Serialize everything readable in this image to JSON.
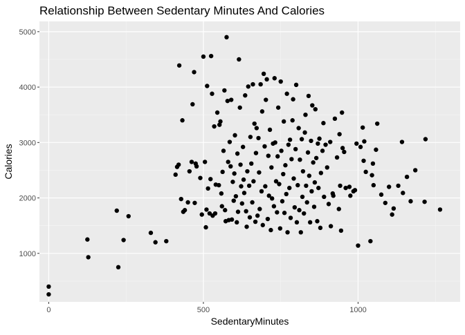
{
  "chart_data": {
    "type": "scatter",
    "title": "Relationship Between Sedentary Minutes And Calories",
    "xlabel": "SedentaryMinutes",
    "ylabel": "Calories",
    "xlim": [
      -30,
      1330
    ],
    "ylim": [
      125,
      5185
    ],
    "x_ticks": [
      0,
      500,
      1000
    ],
    "y_ticks": [
      1000,
      2000,
      3000,
      4000,
      5000
    ],
    "x_tick_labels": [
      "0",
      "500",
      "1000"
    ],
    "y_tick_labels": [
      "1000",
      "2000",
      "3000",
      "4000",
      "5000"
    ],
    "grid": true,
    "colors": {
      "panel": "#ebebeb",
      "grid_major": "#ffffff",
      "point": "#000000",
      "text": "#4d4d4d",
      "title": "#000000"
    },
    "points": [
      [
        0,
        400
      ],
      [
        0,
        260
      ],
      [
        125,
        1250
      ],
      [
        128,
        930
      ],
      [
        220,
        1770
      ],
      [
        225,
        750
      ],
      [
        242,
        1240
      ],
      [
        258,
        1670
      ],
      [
        330,
        1370
      ],
      [
        345,
        1200
      ],
      [
        380,
        1220
      ],
      [
        410,
        2420
      ],
      [
        415,
        2560
      ],
      [
        420,
        2600
      ],
      [
        422,
        4390
      ],
      [
        428,
        1980
      ],
      [
        432,
        3400
      ],
      [
        435,
        1750
      ],
      [
        440,
        1780
      ],
      [
        450,
        1920
      ],
      [
        455,
        2480
      ],
      [
        462,
        2650
      ],
      [
        465,
        3690
      ],
      [
        470,
        4270
      ],
      [
        472,
        1910
      ],
      [
        475,
        2620
      ],
      [
        478,
        2570
      ],
      [
        490,
        2360
      ],
      [
        495,
        1700
      ],
      [
        500,
        4550
      ],
      [
        505,
        2650
      ],
      [
        508,
        1470
      ],
      [
        510,
        1790
      ],
      [
        512,
        4020
      ],
      [
        515,
        2170
      ],
      [
        520,
        1720
      ],
      [
        523,
        2340
      ],
      [
        525,
        4560
      ],
      [
        528,
        3880
      ],
      [
        530,
        1680
      ],
      [
        535,
        3290
      ],
      [
        538,
        1720
      ],
      [
        540,
        2240
      ],
      [
        545,
        3540
      ],
      [
        550,
        2230
      ],
      [
        552,
        3320
      ],
      [
        555,
        3380
      ],
      [
        558,
        2080
      ],
      [
        560,
        1850
      ],
      [
        562,
        2470
      ],
      [
        565,
        2850
      ],
      [
        568,
        3940
      ],
      [
        570,
        1780
      ],
      [
        572,
        1580
      ],
      [
        575,
        4900
      ],
      [
        578,
        3750
      ],
      [
        580,
        2650
      ],
      [
        582,
        1600
      ],
      [
        585,
        3010
      ],
      [
        588,
        2570
      ],
      [
        590,
        3770
      ],
      [
        592,
        1610
      ],
      [
        595,
        2290
      ],
      [
        598,
        1950
      ],
      [
        600,
        2440
      ],
      [
        602,
        3130
      ],
      [
        605,
        2030
      ],
      [
        608,
        1560
      ],
      [
        610,
        2800
      ],
      [
        612,
        1750
      ],
      [
        615,
        4500
      ],
      [
        618,
        3630
      ],
      [
        620,
        2600
      ],
      [
        622,
        2210
      ],
      [
        625,
        1900
      ],
      [
        628,
        2920
      ],
      [
        630,
        2330
      ],
      [
        632,
        2090
      ],
      [
        635,
        3850
      ],
      [
        638,
        1760
      ],
      [
        640,
        1480
      ],
      [
        642,
        2480
      ],
      [
        645,
        4010
      ],
      [
        648,
        2220
      ],
      [
        650,
        1650
      ],
      [
        652,
        3100
      ],
      [
        655,
        2620
      ],
      [
        658,
        1920
      ],
      [
        660,
        4050
      ],
      [
        662,
        2300
      ],
      [
        665,
        3340
      ],
      [
        668,
        1570
      ],
      [
        670,
        2810
      ],
      [
        672,
        3260
      ],
      [
        675,
        1680
      ],
      [
        678,
        3080
      ],
      [
        680,
        2460
      ],
      [
        682,
        1800
      ],
      [
        685,
        4050
      ],
      [
        688,
        2120
      ],
      [
        690,
        3560
      ],
      [
        692,
        1510
      ],
      [
        695,
        4240
      ],
      [
        698,
        2930
      ],
      [
        700,
        2210
      ],
      [
        702,
        3770
      ],
      [
        705,
        4140
      ],
      [
        708,
        1620
      ],
      [
        710,
        2760
      ],
      [
        712,
        2040
      ],
      [
        715,
        3230
      ],
      [
        718,
        1420
      ],
      [
        720,
        2550
      ],
      [
        722,
        1990
      ],
      [
        725,
        2980
      ],
      [
        728,
        1850
      ],
      [
        730,
        4160
      ],
      [
        732,
        3000
      ],
      [
        735,
        2300
      ],
      [
        738,
        1740
      ],
      [
        740,
        2750
      ],
      [
        742,
        3630
      ],
      [
        745,
        2250
      ],
      [
        748,
        1450
      ],
      [
        750,
        4100
      ],
      [
        752,
        2850
      ],
      [
        755,
        1940
      ],
      [
        758,
        2430
      ],
      [
        760,
        3380
      ],
      [
        762,
        1730
      ],
      [
        765,
        2590
      ],
      [
        768,
        2070
      ],
      [
        770,
        3880
      ],
      [
        772,
        1380
      ],
      [
        775,
        2960
      ],
      [
        778,
        2180
      ],
      [
        780,
        3050
      ],
      [
        782,
        1640
      ],
      [
        785,
        2700
      ],
      [
        788,
        3400
      ],
      [
        790,
        3780
      ],
      [
        792,
        2350
      ],
      [
        795,
        1830
      ],
      [
        798,
        2880
      ],
      [
        800,
        4040
      ],
      [
        802,
        1560
      ],
      [
        805,
        2230
      ],
      [
        808,
        3260
      ],
      [
        810,
        1780
      ],
      [
        812,
        2690
      ],
      [
        815,
        1380
      ],
      [
        818,
        3060
      ],
      [
        820,
        2020
      ],
      [
        822,
        2480
      ],
      [
        825,
        1720
      ],
      [
        828,
        3180
      ],
      [
        830,
        3500
      ],
      [
        832,
        2220
      ],
      [
        835,
        1920
      ],
      [
        838,
        2820
      ],
      [
        840,
        3840
      ],
      [
        842,
        2400
      ],
      [
        845,
        1560
      ],
      [
        848,
        3030
      ],
      [
        850,
        2120
      ],
      [
        852,
        3670
      ],
      [
        855,
        2640
      ],
      [
        858,
        1840
      ],
      [
        860,
        2280
      ],
      [
        862,
        3600
      ],
      [
        865,
        2720
      ],
      [
        868,
        1580
      ],
      [
        870,
        2980
      ],
      [
        872,
        2180
      ],
      [
        875,
        3070
      ],
      [
        878,
        1460
      ],
      [
        880,
        2450
      ],
      [
        885,
        2850
      ],
      [
        888,
        3350
      ],
      [
        890,
        2020
      ],
      [
        895,
        2960
      ],
      [
        900,
        2550
      ],
      [
        905,
        1890
      ],
      [
        910,
        3010
      ],
      [
        912,
        1490
      ],
      [
        918,
        2080
      ],
      [
        920,
        2040
      ],
      [
        925,
        3430
      ],
      [
        932,
        2730
      ],
      [
        938,
        1800
      ],
      [
        940,
        3150
      ],
      [
        942,
        2220
      ],
      [
        945,
        1410
      ],
      [
        948,
        3540
      ],
      [
        950,
        2900
      ],
      [
        955,
        2830
      ],
      [
        960,
        2180
      ],
      [
        972,
        2200
      ],
      [
        975,
        2040
      ],
      [
        985,
        2120
      ],
      [
        990,
        2140
      ],
      [
        995,
        2980
      ],
      [
        1000,
        1140
      ],
      [
        1008,
        2920
      ],
      [
        1015,
        3270
      ],
      [
        1018,
        2670
      ],
      [
        1020,
        3020
      ],
      [
        1025,
        2470
      ],
      [
        1040,
        1220
      ],
      [
        1045,
        2410
      ],
      [
        1048,
        2620
      ],
      [
        1050,
        2230
      ],
      [
        1058,
        2870
      ],
      [
        1062,
        3340
      ],
      [
        1075,
        2060
      ],
      [
        1088,
        1910
      ],
      [
        1100,
        2200
      ],
      [
        1110,
        1700
      ],
      [
        1115,
        1810
      ],
      [
        1130,
        2220
      ],
      [
        1142,
        3010
      ],
      [
        1145,
        2090
      ],
      [
        1158,
        2380
      ],
      [
        1170,
        1940
      ],
      [
        1185,
        2500
      ],
      [
        1215,
        1930
      ],
      [
        1218,
        3060
      ],
      [
        1265,
        1790
      ]
    ]
  }
}
